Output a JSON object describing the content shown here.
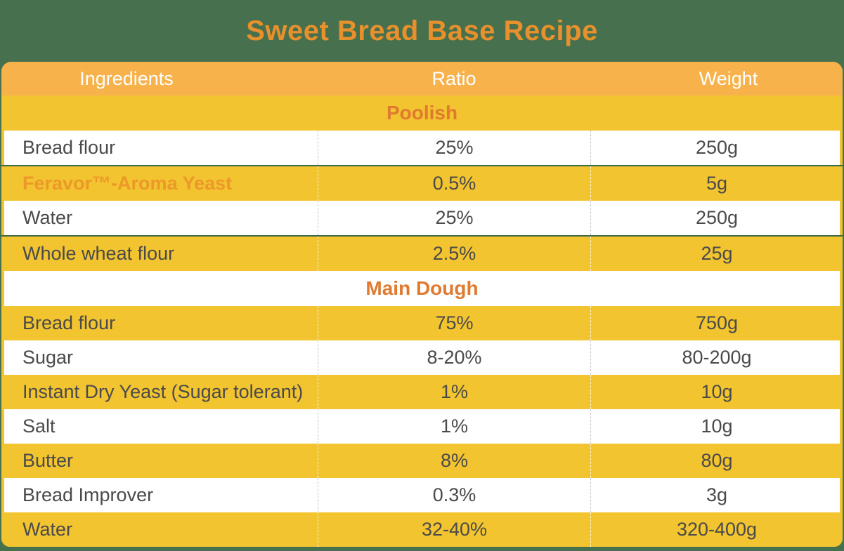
{
  "page": {
    "title": "Sweet Bread Base Recipe"
  },
  "colors": {
    "background_green": "#47704E",
    "header_amber": "#F7B24C",
    "row_yellow": "#F2C42F",
    "row_white": "#FFFFFF",
    "title_orange": "#E8902C",
    "section_orange": "#E07A30",
    "brand_orange": "#EC9929",
    "body_text": "#4A4A4A",
    "accent_line_green": "#3E6A49"
  },
  "table": {
    "columns": {
      "ingredients": "Ingredients",
      "ratio": "Ratio",
      "weight": "Weight"
    },
    "rows": [
      {
        "type": "section",
        "label": "Poolish"
      },
      {
        "type": "item",
        "name": "Bread flour",
        "ratio": "25%",
        "weight": "250g"
      },
      {
        "type": "item",
        "name": "Feravor™-Aroma Yeast",
        "ratio": "0.5%",
        "weight": "5g"
      },
      {
        "type": "item",
        "name": "Water",
        "ratio": "25%",
        "weight": "250g"
      },
      {
        "type": "item",
        "name": "Whole wheat flour",
        "ratio": "2.5%",
        "weight": "25g"
      },
      {
        "type": "section",
        "label": "Main Dough"
      },
      {
        "type": "item",
        "name": "Bread flour",
        "ratio": "75%",
        "weight": "750g"
      },
      {
        "type": "item",
        "name": "Sugar",
        "ratio": "8-20%",
        "weight": "80-200g"
      },
      {
        "type": "item",
        "name": "Instant Dry Yeast (Sugar tolerant)",
        "ratio": "1%",
        "weight": "10g"
      },
      {
        "type": "item",
        "name": "Salt",
        "ratio": "1%",
        "weight": "10g"
      },
      {
        "type": "item",
        "name": "Butter",
        "ratio": "8%",
        "weight": "80g"
      },
      {
        "type": "item",
        "name": "Bread Improver",
        "ratio": "0.3%",
        "weight": "3g"
      },
      {
        "type": "item",
        "name": "Water",
        "ratio": "32-40%",
        "weight": "320-400g"
      }
    ]
  }
}
